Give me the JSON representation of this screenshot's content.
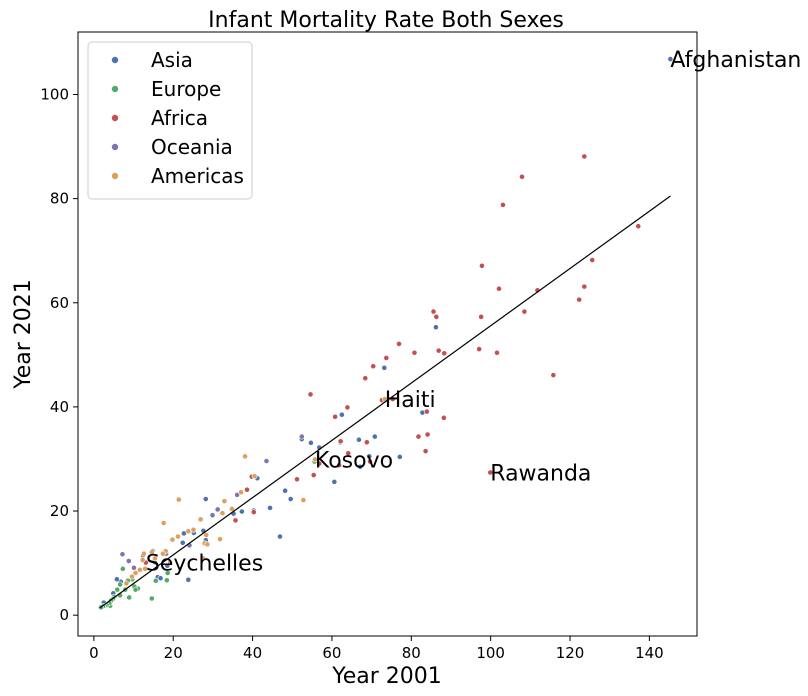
{
  "chart_data": {
    "type": "scatter",
    "title": "Infant Mortality Rate Both Sexes",
    "xlabel": "Year 2001",
    "ylabel": "Year 2021",
    "xlim": [
      -4,
      152
    ],
    "ylim": [
      -4,
      112
    ],
    "xticks": [
      0,
      20,
      40,
      60,
      80,
      100,
      120,
      140
    ],
    "yticks": [
      0,
      20,
      40,
      60,
      80,
      100
    ],
    "grid": false,
    "legend_position": "upper-left",
    "series": [
      {
        "name": "Asia",
        "color": "#4c72b0",
        "points": [
          [
            145.3,
            106.8
          ],
          [
            86.2,
            55.3
          ],
          [
            82.8,
            38.9
          ],
          [
            73.2,
            47.5
          ],
          [
            62.5,
            38.5
          ],
          [
            70.8,
            34.3
          ],
          [
            66.8,
            33.7
          ],
          [
            54.7,
            33.1
          ],
          [
            52.4,
            33.8
          ],
          [
            62.1,
            33.2
          ],
          [
            56.8,
            32.2
          ],
          [
            69.4,
            30.5
          ],
          [
            77.1,
            30.4
          ],
          [
            67.1,
            28.5
          ],
          [
            60.6,
            25.6
          ],
          [
            48.2,
            23.9
          ],
          [
            49.6,
            22.3
          ],
          [
            44.4,
            20.6
          ],
          [
            40.3,
            20.1
          ],
          [
            37.3,
            19.9
          ],
          [
            46.9,
            15.1
          ],
          [
            28.2,
            22.3
          ],
          [
            41.2,
            26.3
          ],
          [
            35.2,
            19.5
          ],
          [
            27.6,
            16.2
          ],
          [
            25.2,
            15.8
          ],
          [
            22.7,
            15.7
          ],
          [
            22.4,
            13.9
          ],
          [
            28.2,
            14.4
          ],
          [
            23.8,
            6.8
          ],
          [
            18.5,
            9.5
          ],
          [
            16.1,
            7.3
          ],
          [
            16.8,
            7.1
          ],
          [
            14.8,
            12.3
          ],
          [
            12.4,
            11.5
          ],
          [
            8.4,
            6.6
          ],
          [
            6.8,
            6.4
          ],
          [
            5.8,
            6.9
          ],
          [
            4.9,
            4.2
          ],
          [
            2.5,
            2.4
          ],
          [
            3.6,
            2.1
          ]
        ]
      },
      {
        "name": "Europe",
        "color": "#55a868",
        "points": [
          [
            55.6,
            29.5
          ],
          [
            18.6,
            8.1
          ],
          [
            18.4,
            6.7
          ],
          [
            15.6,
            6.6
          ],
          [
            14.6,
            3.2
          ],
          [
            11.1,
            5.1
          ],
          [
            10.2,
            5.5
          ],
          [
            9.7,
            6.9
          ],
          [
            8.6,
            6.6
          ],
          [
            7.9,
            4.9
          ],
          [
            7.3,
            8.9
          ],
          [
            6.6,
            5.9
          ],
          [
            6.6,
            3.8
          ],
          [
            5.9,
            4.9
          ],
          [
            5.1,
            3.5
          ],
          [
            4.8,
            3.1
          ],
          [
            4.3,
            2.8
          ],
          [
            4.1,
            1.8
          ],
          [
            3.9,
            2.3
          ],
          [
            3.2,
            1.9
          ],
          [
            2.7,
            1.8
          ],
          [
            2.3,
            1.7
          ],
          [
            1.8,
            1.5
          ],
          [
            8.9,
            3.4
          ],
          [
            10.5,
            4.9
          ]
        ]
      },
      {
        "name": "Africa",
        "color": "#c44e52",
        "points": [
          [
            123.6,
            88.1
          ],
          [
            107.9,
            84.2
          ],
          [
            103.1,
            78.8
          ],
          [
            137.2,
            74.7
          ],
          [
            125.6,
            68.2
          ],
          [
            97.8,
            67.1
          ],
          [
            123.6,
            63.1
          ],
          [
            102.1,
            62.7
          ],
          [
            111.8,
            62.4
          ],
          [
            122.3,
            60.6
          ],
          [
            108.5,
            58.3
          ],
          [
            85.6,
            58.3
          ],
          [
            86.3,
            57.3
          ],
          [
            97.6,
            57.3
          ],
          [
            76.9,
            52.1
          ],
          [
            80.8,
            50.4
          ],
          [
            86.9,
            50.8
          ],
          [
            88.3,
            50.3
          ],
          [
            97.1,
            51.1
          ],
          [
            101.6,
            50.4
          ],
          [
            73.7,
            49.4
          ],
          [
            70.4,
            47.8
          ],
          [
            68.4,
            45.5
          ],
          [
            115.8,
            46.1
          ],
          [
            54.6,
            42.4
          ],
          [
            72.6,
            41.3
          ],
          [
            75.3,
            41.5
          ],
          [
            83.9,
            39.1
          ],
          [
            88.2,
            37.9
          ],
          [
            60.8,
            38.1
          ],
          [
            63.9,
            39.9
          ],
          [
            81.8,
            34.3
          ],
          [
            84.1,
            34.7
          ],
          [
            62.2,
            33.4
          ],
          [
            68.8,
            33.2
          ],
          [
            64.1,
            31.1
          ],
          [
            69.6,
            29.5
          ],
          [
            61.8,
            28.8
          ],
          [
            56.8,
            29.1
          ],
          [
            55.4,
            26.9
          ],
          [
            83.6,
            31.5
          ],
          [
            99.9,
            27.4
          ],
          [
            51.2,
            26.1
          ],
          [
            39.8,
            26.6
          ],
          [
            35.7,
            18.2
          ],
          [
            40.3,
            19.8
          ],
          [
            13.1,
            10.1
          ],
          [
            38.6,
            24.1
          ]
        ]
      },
      {
        "name": "Oceania",
        "color": "#8172b2",
        "points": [
          [
            43.5,
            29.6
          ],
          [
            52.4,
            34.3
          ],
          [
            31.2,
            20.3
          ],
          [
            36.1,
            23.1
          ],
          [
            29.9,
            19.2
          ],
          [
            7.2,
            11.7
          ],
          [
            8.8,
            10.4
          ],
          [
            15.3,
            10.2
          ],
          [
            18.2,
            11.8
          ],
          [
            24.1,
            13.4
          ],
          [
            10.1,
            9.1
          ]
        ]
      },
      {
        "name": "Americas",
        "color": "#dd9f5c",
        "points": [
          [
            73.3,
            41.5
          ],
          [
            38.1,
            30.5
          ],
          [
            40.5,
            26.7
          ],
          [
            52.8,
            22.1
          ],
          [
            21.4,
            22.2
          ],
          [
            17.6,
            17.7
          ],
          [
            32.9,
            21.9
          ],
          [
            26.9,
            18.4
          ],
          [
            32.4,
            19.6
          ],
          [
            34.8,
            20.4
          ],
          [
            31.8,
            14.6
          ],
          [
            27.9,
            13.8
          ],
          [
            25.1,
            16.4
          ],
          [
            28.3,
            15.4
          ],
          [
            19.8,
            14.5
          ],
          [
            21.2,
            15.1
          ],
          [
            18.1,
            12.3
          ],
          [
            17.4,
            11.8
          ],
          [
            14.6,
            12.1
          ],
          [
            12.6,
            11.8
          ],
          [
            12.3,
            10.6
          ],
          [
            11.6,
            8.7
          ],
          [
            10.5,
            8.1
          ],
          [
            9.6,
            7.4
          ],
          [
            8.2,
            6.1
          ],
          [
            27.5,
            10.9
          ],
          [
            15.4,
            10.9
          ],
          [
            19.2,
            10.1
          ],
          [
            12.9,
            8.9
          ],
          [
            28.6,
            13.6
          ],
          [
            23.8,
            16.1
          ],
          [
            37.1,
            23.6
          ],
          [
            55.7,
            29.9
          ]
        ]
      }
    ],
    "fit_line": {
      "color": "#000000",
      "x": [
        1.5,
        145.3
      ],
      "y": [
        1.4,
        80.5
      ]
    },
    "annotations": [
      {
        "text": "Afghanistan",
        "x": 145.3,
        "y": 106.8
      },
      {
        "text": "Haiti",
        "x": 73.3,
        "y": 41.5
      },
      {
        "text": "Kosovo",
        "x": 55.7,
        "y": 29.9
      },
      {
        "text": "Rawanda",
        "x": 99.9,
        "y": 27.4
      },
      {
        "text": "Seychelles",
        "x": 13.1,
        "y": 10.1
      }
    ]
  }
}
